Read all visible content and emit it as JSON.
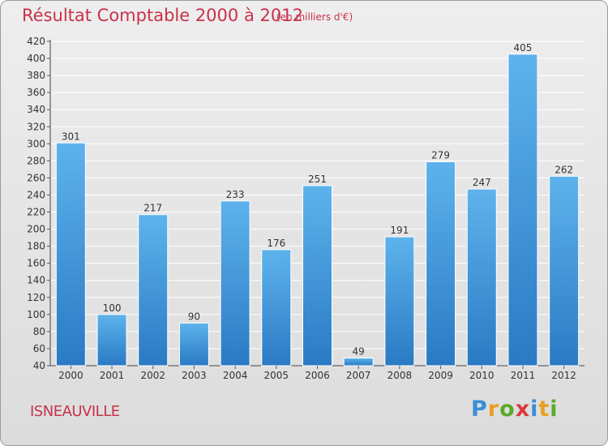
{
  "header": {
    "title": "Résultat Comptable 2000 à 2012",
    "subtitle": "(en milliers d'€)"
  },
  "footer": {
    "location": "ISNEAUVILLE",
    "brand": [
      "P",
      "r",
      "o",
      "x",
      "i",
      "t",
      "i"
    ],
    "brand_colors": [
      "#3a8fd6",
      "#e8a020",
      "#5aaa2a",
      "#d83a3a",
      "#3a8fd6",
      "#e8a020",
      "#5aaa2a"
    ]
  },
  "colors": {
    "bar_light": "#5eb3ec",
    "bar_dark": "#2a7ac4",
    "text_accent": "#c8324b"
  },
  "chart_data": {
    "type": "bar",
    "categories": [
      "2000",
      "2001",
      "2002",
      "2003",
      "2004",
      "2005",
      "2006",
      "2007",
      "2008",
      "2009",
      "2010",
      "2011",
      "2012"
    ],
    "values": [
      301,
      100,
      217,
      90,
      233,
      176,
      251,
      49,
      191,
      279,
      247,
      405,
      262
    ],
    "ylim": [
      40,
      420
    ],
    "yticks": [
      40,
      60,
      80,
      100,
      120,
      140,
      160,
      180,
      200,
      220,
      240,
      260,
      280,
      300,
      320,
      340,
      360,
      380,
      400,
      420
    ],
    "grid": true,
    "data_labels": true
  }
}
